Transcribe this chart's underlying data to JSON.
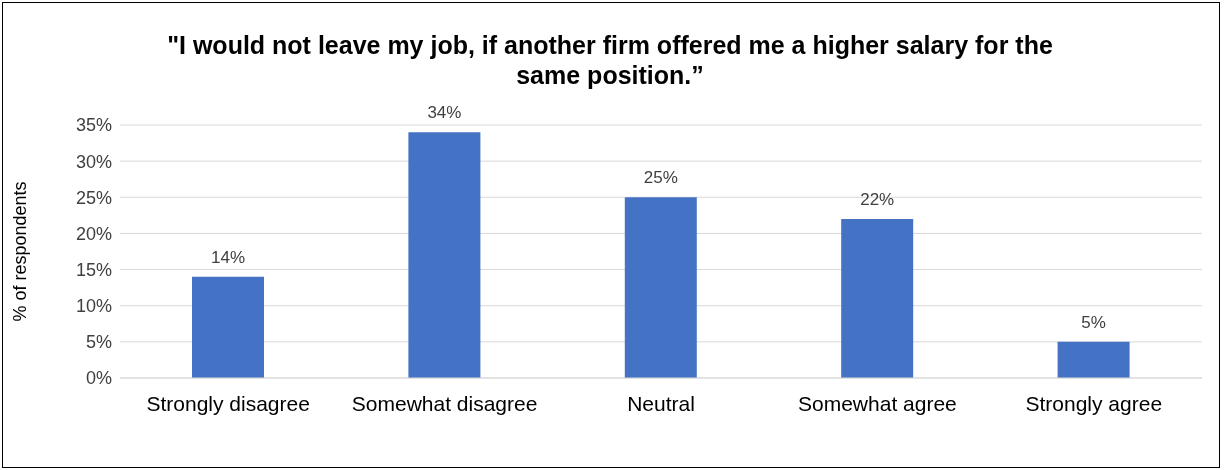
{
  "chart_data": {
    "type": "bar",
    "title": "\"I would not leave my job, if another firm offered me a higher salary for the same position.”",
    "ylabel": "% of respondents",
    "categories": [
      "Strongly disagree",
      "Somewhat disagree",
      "Neutral",
      "Somewhat agree",
      "Strongly agree"
    ],
    "values": [
      14,
      34,
      25,
      22,
      5
    ],
    "value_labels": [
      "14%",
      "34%",
      "25%",
      "22%",
      "5%"
    ],
    "color": "#4472c4",
    "ylim": [
      0,
      35
    ],
    "yticks": [
      {
        "value": 0,
        "label": "0%"
      },
      {
        "value": 5,
        "label": "5%"
      },
      {
        "value": 10,
        "label": "10%"
      },
      {
        "value": 15,
        "label": "15%"
      },
      {
        "value": 20,
        "label": "20%"
      },
      {
        "value": 25,
        "label": "25%"
      },
      {
        "value": 30,
        "label": "30%"
      },
      {
        "value": 35,
        "label": "35%"
      }
    ],
    "grid": "y"
  }
}
